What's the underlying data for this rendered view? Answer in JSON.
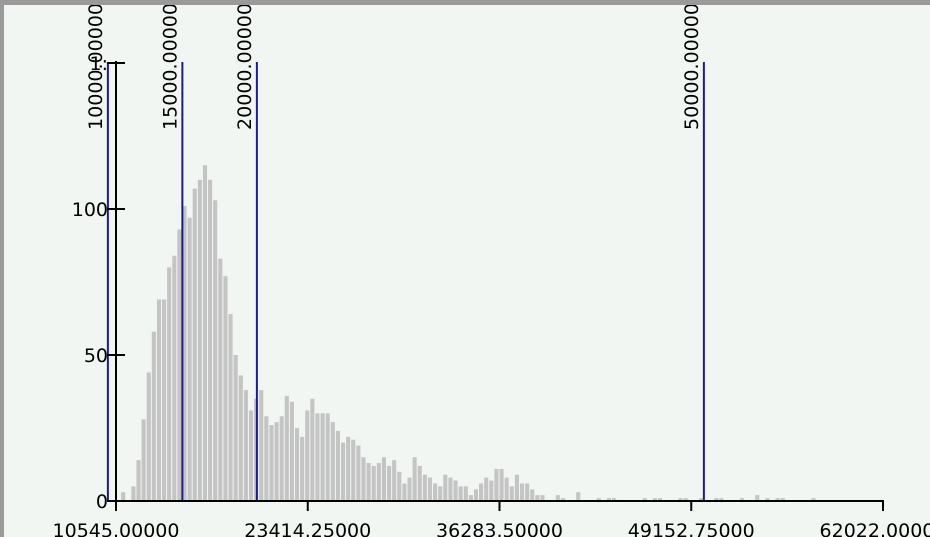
{
  "chart_data": {
    "type": "bar",
    "title": "",
    "xlabel": "",
    "ylabel": "",
    "x_range": [
      10545.0,
      62022.0
    ],
    "y_range": [
      0,
      150
    ],
    "x_ticks": [
      10545.0,
      23414.25,
      36283.5,
      49152.75,
      62022.0
    ],
    "x_tick_labels": [
      "10545.00000",
      "23414.25000",
      "36283.50000",
      "49152.75000",
      "62022.00000"
    ],
    "y_ticks": [
      0,
      50,
      100,
      150
    ],
    "y_tick_labels": [
      "0",
      "50",
      "100",
      "1:"
    ],
    "bin_start": 10545.0,
    "bin_width": 343.18,
    "values": [
      0,
      3,
      0,
      5,
      14,
      28,
      44,
      58,
      69,
      69,
      80,
      84,
      93,
      101,
      97,
      107,
      110,
      115,
      110,
      103,
      83,
      77,
      64,
      50,
      43,
      38,
      31,
      35,
      38,
      29,
      26,
      27,
      29,
      36,
      34,
      25,
      22,
      31,
      35,
      30,
      30,
      30,
      27,
      24,
      20,
      22,
      21,
      19,
      15,
      13,
      12,
      13,
      15,
      12,
      14,
      10,
      6,
      8,
      15,
      12,
      9,
      8,
      6,
      5,
      9,
      8,
      7,
      5,
      5,
      2,
      4,
      6,
      8,
      7,
      11,
      11,
      8,
      5,
      9,
      6,
      6,
      4,
      2,
      2,
      0,
      0,
      2,
      1,
      0,
      0,
      3,
      0,
      0,
      0,
      1,
      0,
      1,
      1,
      0,
      0,
      0,
      0,
      0,
      1,
      0,
      1,
      1,
      0,
      0,
      0,
      1,
      1,
      0,
      0,
      1,
      0,
      0,
      1,
      1,
      0,
      0,
      0,
      1,
      0,
      0,
      2,
      0,
      1,
      0,
      1,
      1,
      0,
      0,
      0,
      0,
      0,
      1,
      0,
      0,
      0,
      0,
      0,
      0,
      0,
      0,
      0,
      0,
      0,
      0,
      0
    ],
    "bar_color": "#c4c4c4",
    "reference_lines": [
      {
        "x": 10000.0,
        "label": "10000.00000"
      },
      {
        "x": 15000.0,
        "label": "15000.00000"
      },
      {
        "x": 20000.0,
        "label": "20000.00000"
      },
      {
        "x": 50000.0,
        "label": "50000.00000"
      }
    ],
    "reference_line_color": "#1c1c8c",
    "grid": false
  }
}
